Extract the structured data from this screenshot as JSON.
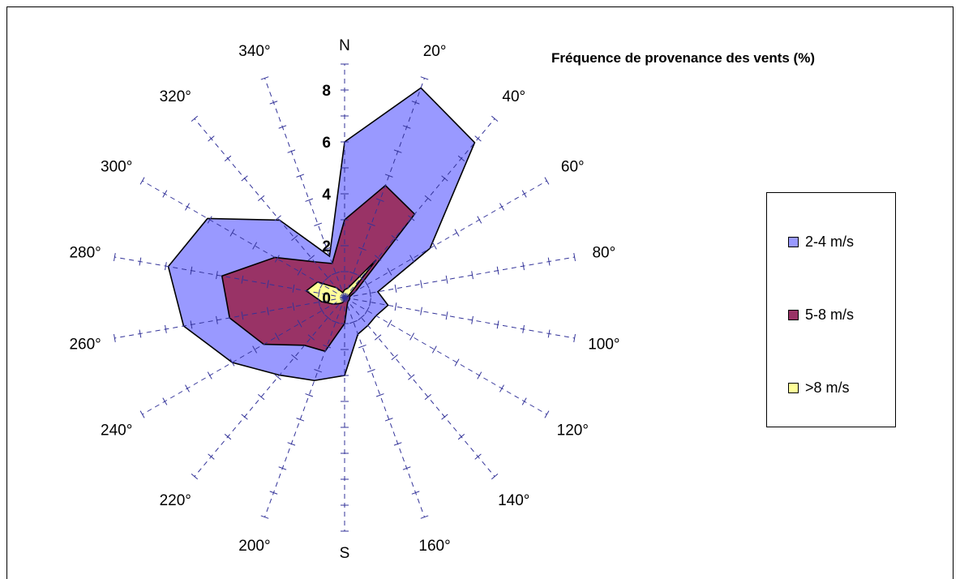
{
  "chart_data": {
    "type": "radar",
    "title": "Fréquence de provenance des vents (%)",
    "directions": [
      0,
      20,
      40,
      60,
      80,
      100,
      120,
      140,
      160,
      180,
      200,
      220,
      240,
      260,
      280,
      300,
      320,
      340
    ],
    "direction_labels": [
      "",
      "20°",
      "40°",
      "60°",
      "80°",
      "100°",
      "120°",
      "140°",
      "160°",
      "",
      "200°",
      "220°",
      "240°",
      "260°",
      "280°",
      "300°",
      "320°",
      "340°"
    ],
    "north_label": "N",
    "south_label": "S",
    "r_ticks": [
      0,
      2,
      4,
      6,
      8
    ],
    "r_max": 9,
    "series": [
      {
        "name": "2-4 m/s",
        "color": "#9999ff",
        "values": [
          6.0,
          8.6,
          7.8,
          3.8,
          1.3,
          1.7,
          1.4,
          1.4,
          1.5,
          3.0,
          3.4,
          3.9,
          5.0,
          6.3,
          6.9,
          6.1,
          3.9,
          1.7
        ]
      },
      {
        "name": "5-8 m/s",
        "color": "#993366",
        "values": [
          3.0,
          4.6,
          4.2,
          0.5,
          0.2,
          0.2,
          0.2,
          0.2,
          0.3,
          1.0,
          2.2,
          2.4,
          3.6,
          4.5,
          4.8,
          3.1,
          1.8,
          1.4
        ]
      },
      {
        "name": ">8 m/s",
        "color": "#ffff99",
        "values": [
          0.3,
          0.4,
          1.9,
          0.2,
          0.05,
          0.05,
          0.05,
          0.05,
          0.05,
          0.05,
          0.2,
          0.3,
          0.5,
          0.9,
          1.5,
          1.2,
          0.5,
          0.2
        ]
      }
    ],
    "legend_position": "right"
  }
}
